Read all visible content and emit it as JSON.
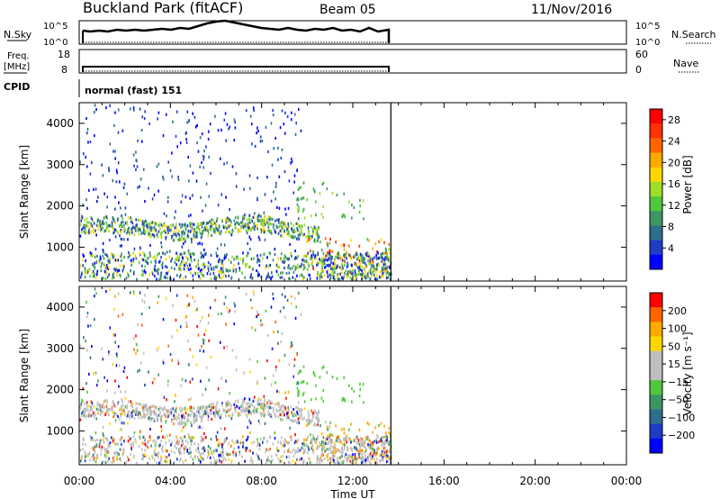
{
  "header": {
    "site": "Buckland Park (fitACF)",
    "beam": "Beam 05",
    "date": "11/Nov/2016"
  },
  "noise_panel": {
    "left_label": "N.Sky",
    "left_ticks": [
      "10^5",
      "10^0"
    ],
    "right_label": "N.Search",
    "right_ticks": [
      "10^5",
      "10^0"
    ]
  },
  "freq_panel": {
    "left_label_1": "Freq.",
    "left_label_2": "[MHz]",
    "left_ticks": [
      "18",
      "8"
    ],
    "right_label": "Nave",
    "right_ticks": [
      "60",
      "0"
    ]
  },
  "cpid_panel": {
    "label": "CPID",
    "value": "normal (fast) 151"
  },
  "chart_data": [
    {
      "type": "heatmap",
      "title": "",
      "xlabel": "Time UT",
      "ylabel": "Slant Range [km]",
      "xlim": [
        "00:00",
        "24:00"
      ],
      "x_ticks": [
        "00:00",
        "04:00",
        "08:00",
        "12:00",
        "16:00",
        "20:00",
        "00:00"
      ],
      "ylim": [
        180,
        4500
      ],
      "y_ticks": [
        1000,
        2000,
        3000,
        4000
      ],
      "data_end": "13:40",
      "colorbar": {
        "label": "Power [dB]",
        "ticks": [
          "4",
          "8",
          "12",
          "16",
          "20",
          "24",
          "28"
        ],
        "range": [
          0,
          30
        ],
        "colors": [
          "#0000ff",
          "#1e3cc8",
          "#2d6e8c",
          "#3c9664",
          "#50c83c",
          "#a0dc28",
          "#ffd700",
          "#ffaa00",
          "#ff6400",
          "#ff3200",
          "#ff0000"
        ]
      }
    },
    {
      "type": "heatmap",
      "title": "",
      "xlabel": "Time UT",
      "ylabel": "Slant Range [km]",
      "xlim": [
        "00:00",
        "24:00"
      ],
      "x_ticks": [
        "00:00",
        "04:00",
        "08:00",
        "12:00",
        "16:00",
        "20:00",
        "00:00"
      ],
      "ylim": [
        180,
        4500
      ],
      "y_ticks": [
        1000,
        2000,
        3000,
        4000
      ],
      "data_end": "13:40",
      "colorbar": {
        "label": "Velocity [m s⁻¹]",
        "ticks": [
          "200",
          "100",
          "50",
          "15",
          "−15",
          "−50",
          "−100",
          "−200"
        ],
        "colors": [
          "#0000ff",
          "#1e3cc8",
          "#2d6e8c",
          "#3c9664",
          "#50c83c",
          "#bebebe",
          "#bebebe",
          "#ffd700",
          "#ffaa00",
          "#ff6400",
          "#ff0000"
        ]
      }
    }
  ]
}
